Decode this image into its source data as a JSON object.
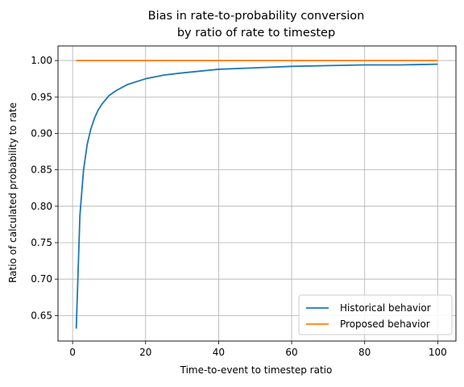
{
  "chart_data": {
    "type": "line",
    "title_lines": [
      "Bias in rate-to-probability conversion",
      "by ratio of rate to timestep"
    ],
    "xlabel": "Time-to-event to timestep ratio",
    "ylabel": "Ratio of calculated probability to rate",
    "xlim": [
      -4,
      105
    ],
    "ylim": [
      0.615,
      1.02
    ],
    "xticks": [
      0,
      20,
      40,
      60,
      80,
      100
    ],
    "xtick_labels": [
      "0",
      "20",
      "40",
      "60",
      "80",
      "100"
    ],
    "yticks": [
      0.65,
      0.7,
      0.75,
      0.8,
      0.85,
      0.9,
      0.95,
      1.0
    ],
    "ytick_labels": [
      "0.65",
      "0.70",
      "0.75",
      "0.80",
      "0.85",
      "0.90",
      "0.95",
      "1.00"
    ],
    "grid": true,
    "legend_position": "lower-right",
    "series": [
      {
        "name": "Historical behavior",
        "color": "#1f77b4",
        "x": [
          1,
          2,
          3,
          4,
          5,
          6,
          7,
          8,
          9,
          10,
          12,
          15,
          20,
          25,
          30,
          40,
          50,
          60,
          70,
          80,
          90,
          100
        ],
        "y": [
          0.632,
          0.787,
          0.85,
          0.885,
          0.906,
          0.921,
          0.932,
          0.94,
          0.946,
          0.952,
          0.959,
          0.967,
          0.975,
          0.98,
          0.983,
          0.988,
          0.99,
          0.992,
          0.993,
          0.994,
          0.994,
          0.995
        ]
      },
      {
        "name": "Proposed behavior",
        "color": "#ff7f0e",
        "x": [
          1,
          100
        ],
        "y": [
          1.0,
          1.0
        ]
      }
    ]
  }
}
